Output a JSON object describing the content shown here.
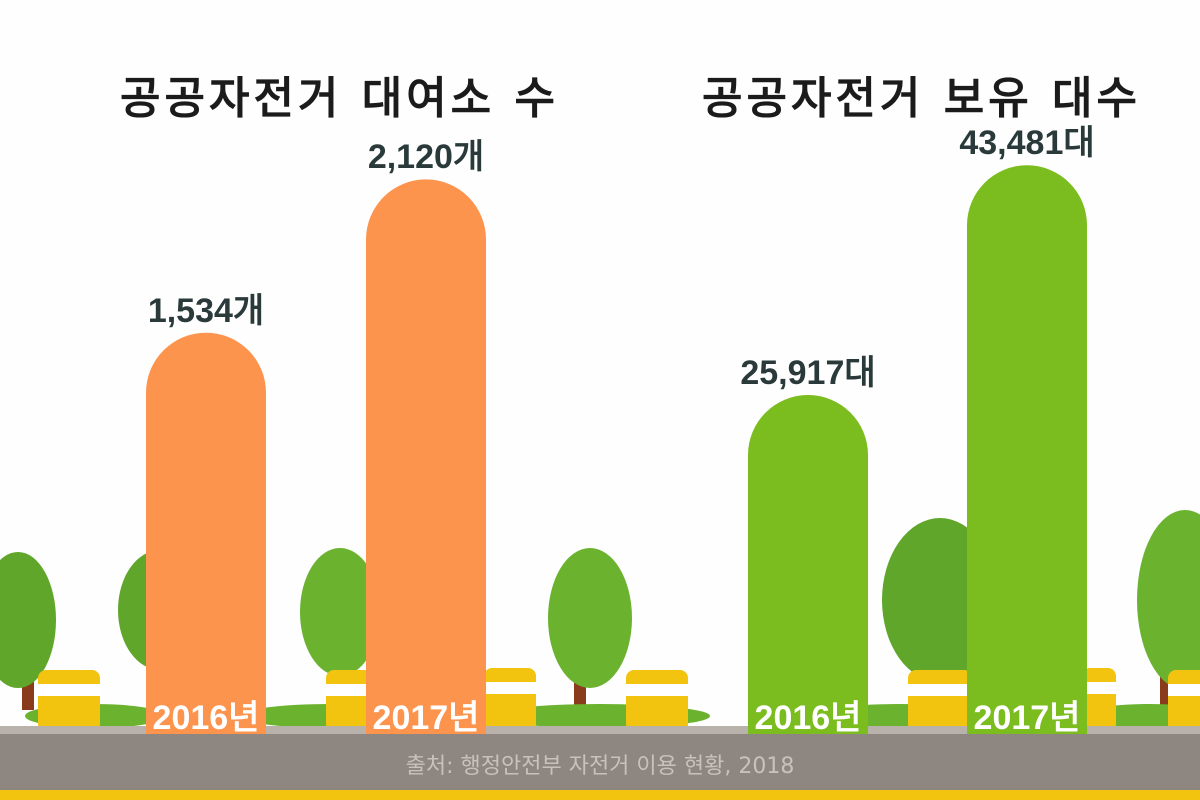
{
  "source": "출처: 행정안전부 자전거 이용 현황, 2018",
  "colors": {
    "left_bar": "#fd944e",
    "right_bar": "#7bbc1e",
    "label_text": "#2a3a3a",
    "road": "#8e8680",
    "road_line": "#f2c40f"
  },
  "chart_data": [
    {
      "type": "bar",
      "title": "공공자전거 대여소 수",
      "categories": [
        "2016년",
        "2017년"
      ],
      "values": [
        1534,
        2120
      ],
      "value_labels": [
        "1,534개",
        "2,120개"
      ],
      "unit": "개",
      "ylim": [
        0,
        2500
      ],
      "grid": false,
      "legend": "none"
    },
    {
      "type": "bar",
      "title": "공공자전거 보유 대수",
      "categories": [
        "2016년",
        "2017년"
      ],
      "values": [
        25917,
        43481
      ],
      "value_labels": [
        "25,917대",
        "43,481대"
      ],
      "unit": "대",
      "ylim": [
        0,
        50000
      ],
      "grid": false,
      "legend": "none"
    }
  ]
}
